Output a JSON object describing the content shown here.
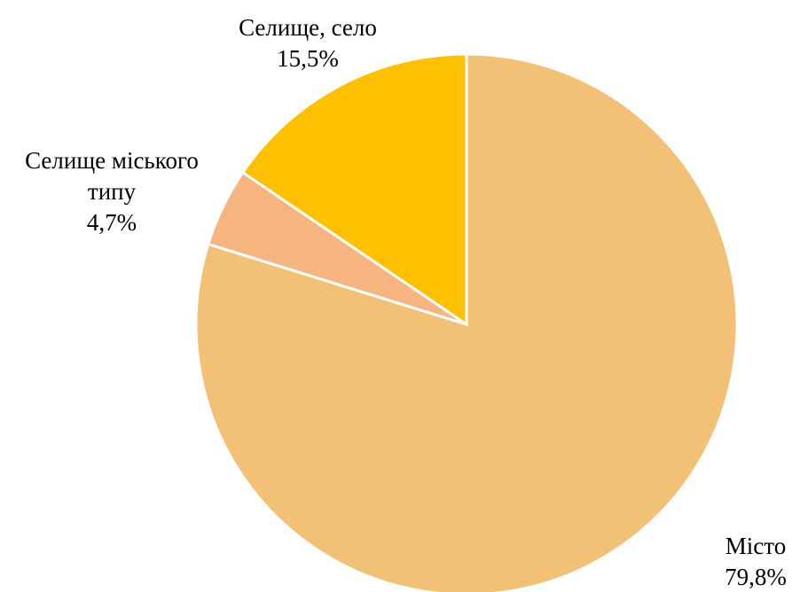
{
  "chart_data": {
    "type": "pie",
    "title": "",
    "start_angle_deg": 0,
    "direction": "clockwise",
    "slices": [
      {
        "label": "Місто",
        "value": 79.8,
        "value_label": "79,8%",
        "color": "#F3C175"
      },
      {
        "label": "Селище міського типу",
        "label_lines": [
          "Селище міського",
          "типу"
        ],
        "value": 4.7,
        "value_label": "4,7%",
        "color": "#F6B47F"
      },
      {
        "label": "Селище, село",
        "value": 15.5,
        "value_label": "15,5%",
        "color": "#FFC000"
      }
    ],
    "legend": "none",
    "data_labels": "outside"
  }
}
